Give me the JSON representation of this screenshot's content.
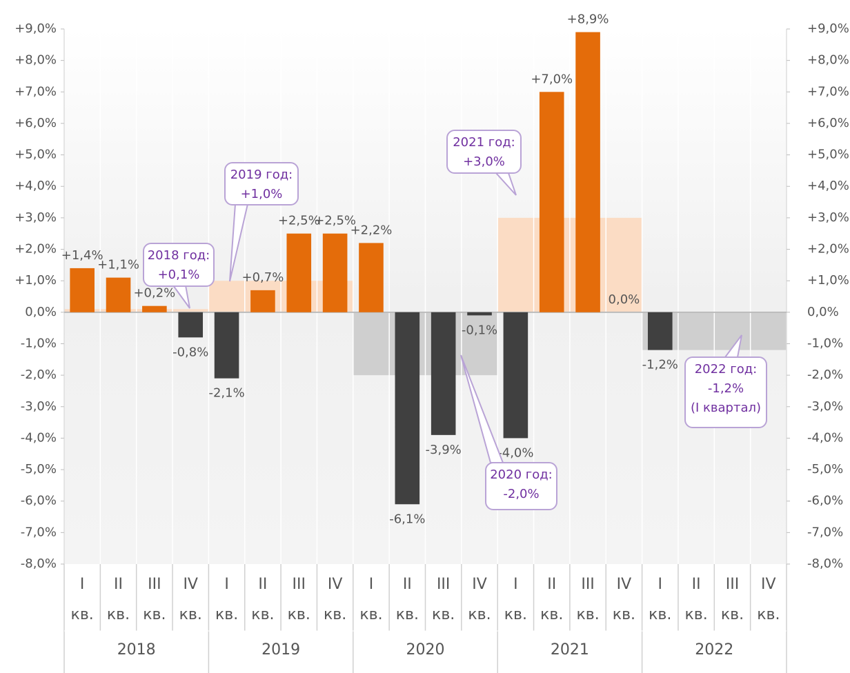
{
  "chart_data": {
    "type": "bar",
    "categories": [
      "I кв.",
      "II кв.",
      "III кв.",
      "IV кв.",
      "I кв.",
      "II кв.",
      "III кв.",
      "IV кв.",
      "I кв.",
      "II кв.",
      "III кв.",
      "IV кв.",
      "I кв.",
      "II кв.",
      "III кв.",
      "IV кв.",
      "I кв.",
      "II кв.",
      "III кв.",
      "IV кв."
    ],
    "groups": [
      "2018",
      "2019",
      "2020",
      "2021",
      "2022"
    ],
    "values": [
      1.4,
      1.1,
      0.2,
      -0.8,
      -2.1,
      0.7,
      2.5,
      2.5,
      2.2,
      -6.1,
      -3.9,
      -0.1,
      -4.0,
      7.0,
      8.9,
      0.0,
      -1.2,
      null,
      null,
      null
    ],
    "value_labels": [
      "+1,4%",
      "+1,1%",
      "+0,2%",
      "-0,8%",
      "-2,1%",
      "+0,7%",
      "+2,5%",
      "+2,5%",
      "+2,2%",
      "-6,1%",
      "-3,9%",
      "-0,1%",
      "-4,0%",
      "+7,0%",
      "+8,9%",
      "0,0%",
      "-1,2%",
      null,
      null,
      null
    ],
    "positive_color": "#e46c0a",
    "negative_color": "#404040",
    "annual": {
      "names": [
        "2018 год:",
        "2019 год:",
        "2020 год:",
        "2021 год:",
        "2022 год:"
      ],
      "values": [
        0.1,
        1.0,
        -2.0,
        3.0,
        -1.2
      ],
      "value_labels": [
        "+0,1%",
        "+1,0%",
        "-2,0%",
        "+3,0%",
        "-1,2%"
      ],
      "notes": [
        null,
        null,
        null,
        null,
        "(I квартал)"
      ],
      "positive_color": "#fbdcc4",
      "negative_color": "#cfcfcf"
    },
    "ylim": [
      -8,
      9
    ],
    "yticks": [
      {
        "value": -8,
        "label": "-8,0%"
      },
      {
        "value": -7,
        "label": "-7,0%"
      },
      {
        "value": -6,
        "label": "-6,0%"
      },
      {
        "value": -5,
        "label": "-5,0%"
      },
      {
        "value": -4,
        "label": "-4,0%"
      },
      {
        "value": -3,
        "label": "-3,0%"
      },
      {
        "value": -2,
        "label": "-2,0%"
      },
      {
        "value": -1,
        "label": "-1,0%"
      },
      {
        "value": 0,
        "label": "0,0%"
      },
      {
        "value": 1,
        "label": "+1,0%"
      },
      {
        "value": 2,
        "label": "+2,0%"
      },
      {
        "value": 3,
        "label": "+3,0%"
      },
      {
        "value": 4,
        "label": "+4,0%"
      },
      {
        "value": 5,
        "label": "+5,0%"
      },
      {
        "value": 6,
        "label": "+6,0%"
      },
      {
        "value": 7,
        "label": "+7,0%"
      },
      {
        "value": 8,
        "label": "+8,0%"
      },
      {
        "value": 9,
        "label": "+9,0%"
      }
    ]
  }
}
